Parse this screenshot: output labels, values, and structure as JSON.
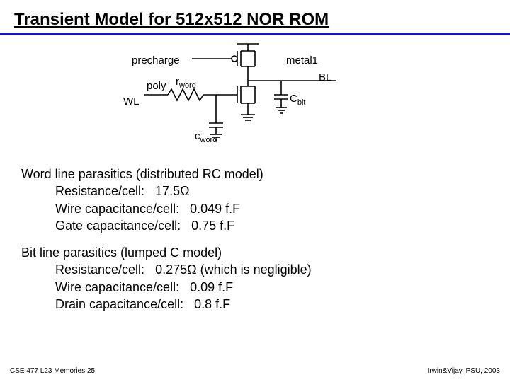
{
  "title": "Transient Model for 512x512 NOR ROM",
  "diagram": {
    "precharge": "precharge",
    "poly": "poly",
    "rword_html": "r<span class=\"sub\">word</span>",
    "wl": "WL",
    "metal1": "metal1",
    "bl": "BL",
    "cbit_html": "C<span class=\"sub\">bit</span>",
    "cword_html": "c<span class=\"sub\">word</span>"
  },
  "wordline": {
    "heading": "Word line parasitics (distributed RC model)",
    "r_label": "Resistance/cell:",
    "r_value": "17.5",
    "r_unit": "Ω",
    "wcap_label": "Wire capacitance/cell:",
    "wcap_value": "0.049 f.F",
    "gcap_label": "Gate capacitance/cell:",
    "gcap_value": "0.75 f.F"
  },
  "bitline": {
    "heading": "Bit line parasitics (lumped C model)",
    "r_label": "Resistance/cell:",
    "r_value": "0.275",
    "r_unit": "Ω",
    "r_note": "(which is negligible)",
    "wcap_label": "Wire capacitance/cell:",
    "wcap_value": "0.09 f.F",
    "dcap_label": "Drain capacitance/cell:",
    "dcap_value": "0.8 f.F"
  },
  "footer": {
    "left": "CSE 477 L23 Memories.25",
    "right": "Irwin&Vijay, PSU, 2003"
  },
  "colors": {
    "underline": "#1a1aa0",
    "stroke": "#000000",
    "bg": "#ffffff"
  }
}
